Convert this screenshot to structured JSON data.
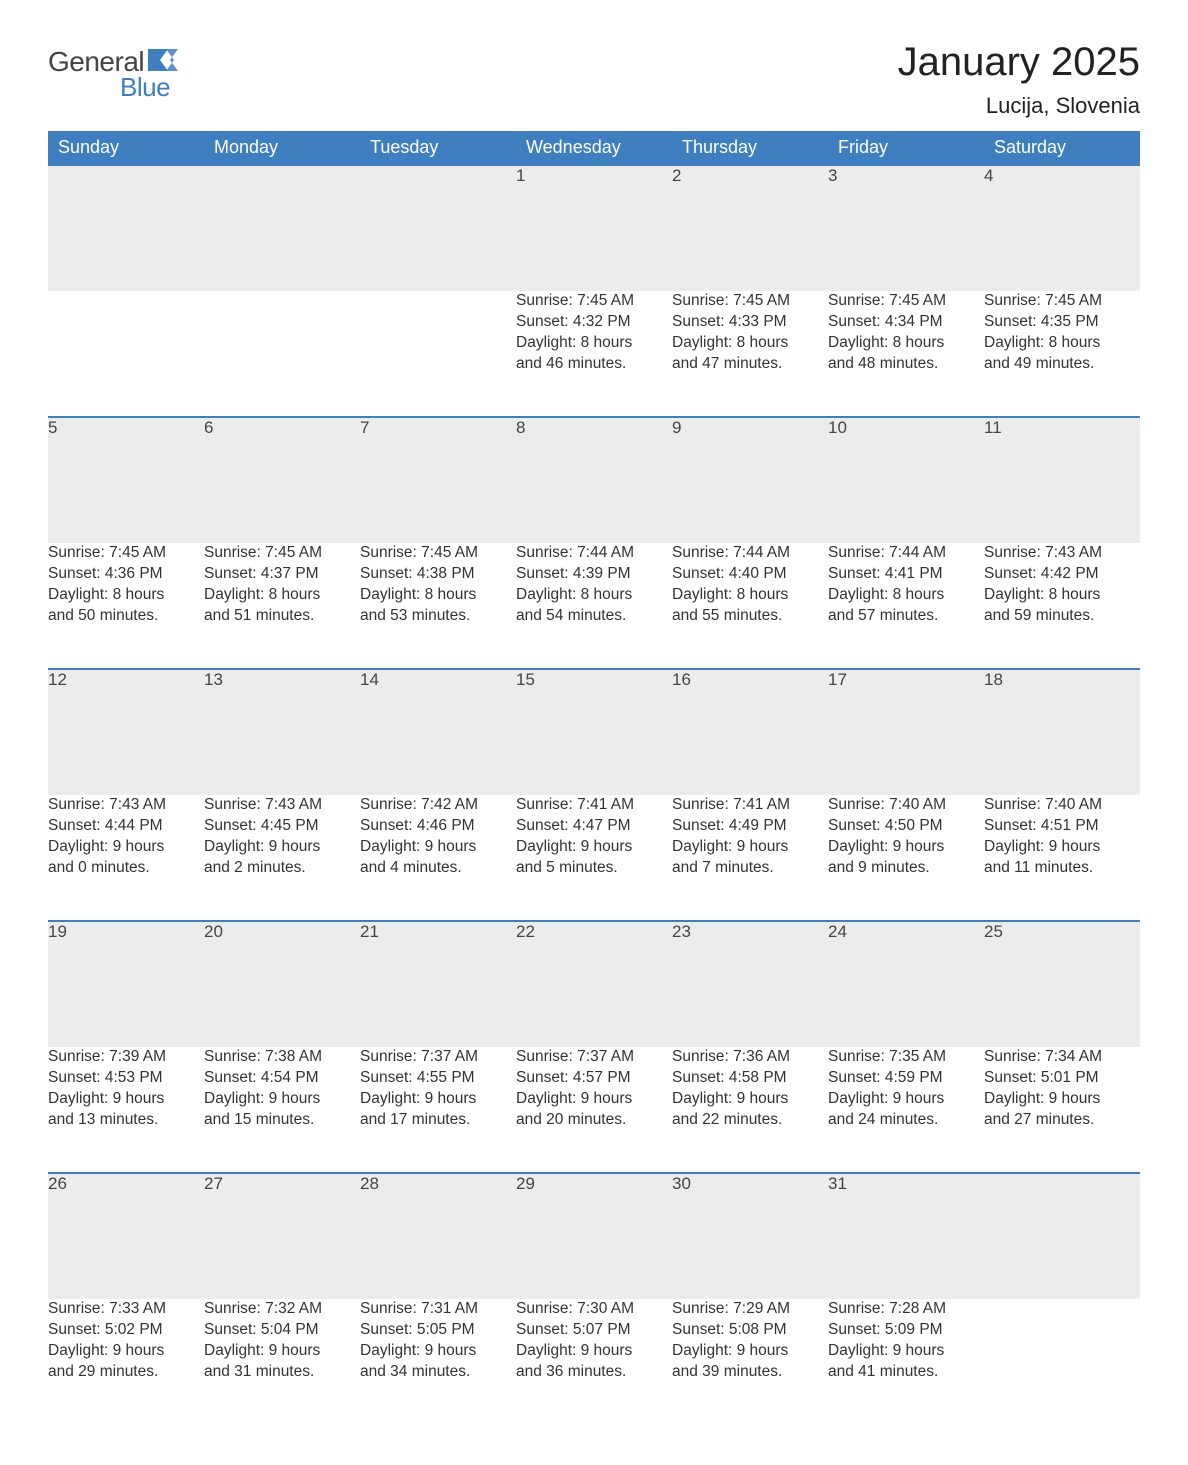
{
  "logo": {
    "text_general": "General",
    "text_blue": "Blue",
    "flag_color": "#3f7ebf"
  },
  "title": "January 2025",
  "location": "Lucija, Slovenia",
  "colors": {
    "header_bg": "#3f7ebf",
    "header_text": "#ffffff",
    "daynum_bg": "#ececec",
    "daynum_border": "#3f7ebf",
    "body_text": "#333333",
    "page_bg": "#ffffff"
  },
  "weekdays": [
    "Sunday",
    "Monday",
    "Tuesday",
    "Wednesday",
    "Thursday",
    "Friday",
    "Saturday"
  ],
  "weeks": [
    {
      "days": [
        null,
        null,
        null,
        {
          "num": "1",
          "sunrise": "Sunrise: 7:45 AM",
          "sunset": "Sunset: 4:32 PM",
          "daylight1": "Daylight: 8 hours",
          "daylight2": "and 46 minutes."
        },
        {
          "num": "2",
          "sunrise": "Sunrise: 7:45 AM",
          "sunset": "Sunset: 4:33 PM",
          "daylight1": "Daylight: 8 hours",
          "daylight2": "and 47 minutes."
        },
        {
          "num": "3",
          "sunrise": "Sunrise: 7:45 AM",
          "sunset": "Sunset: 4:34 PM",
          "daylight1": "Daylight: 8 hours",
          "daylight2": "and 48 minutes."
        },
        {
          "num": "4",
          "sunrise": "Sunrise: 7:45 AM",
          "sunset": "Sunset: 4:35 PM",
          "daylight1": "Daylight: 8 hours",
          "daylight2": "and 49 minutes."
        }
      ]
    },
    {
      "days": [
        {
          "num": "5",
          "sunrise": "Sunrise: 7:45 AM",
          "sunset": "Sunset: 4:36 PM",
          "daylight1": "Daylight: 8 hours",
          "daylight2": "and 50 minutes."
        },
        {
          "num": "6",
          "sunrise": "Sunrise: 7:45 AM",
          "sunset": "Sunset: 4:37 PM",
          "daylight1": "Daylight: 8 hours",
          "daylight2": "and 51 minutes."
        },
        {
          "num": "7",
          "sunrise": "Sunrise: 7:45 AM",
          "sunset": "Sunset: 4:38 PM",
          "daylight1": "Daylight: 8 hours",
          "daylight2": "and 53 minutes."
        },
        {
          "num": "8",
          "sunrise": "Sunrise: 7:44 AM",
          "sunset": "Sunset: 4:39 PM",
          "daylight1": "Daylight: 8 hours",
          "daylight2": "and 54 minutes."
        },
        {
          "num": "9",
          "sunrise": "Sunrise: 7:44 AM",
          "sunset": "Sunset: 4:40 PM",
          "daylight1": "Daylight: 8 hours",
          "daylight2": "and 55 minutes."
        },
        {
          "num": "10",
          "sunrise": "Sunrise: 7:44 AM",
          "sunset": "Sunset: 4:41 PM",
          "daylight1": "Daylight: 8 hours",
          "daylight2": "and 57 minutes."
        },
        {
          "num": "11",
          "sunrise": "Sunrise: 7:43 AM",
          "sunset": "Sunset: 4:42 PM",
          "daylight1": "Daylight: 8 hours",
          "daylight2": "and 59 minutes."
        }
      ]
    },
    {
      "days": [
        {
          "num": "12",
          "sunrise": "Sunrise: 7:43 AM",
          "sunset": "Sunset: 4:44 PM",
          "daylight1": "Daylight: 9 hours",
          "daylight2": "and 0 minutes."
        },
        {
          "num": "13",
          "sunrise": "Sunrise: 7:43 AM",
          "sunset": "Sunset: 4:45 PM",
          "daylight1": "Daylight: 9 hours",
          "daylight2": "and 2 minutes."
        },
        {
          "num": "14",
          "sunrise": "Sunrise: 7:42 AM",
          "sunset": "Sunset: 4:46 PM",
          "daylight1": "Daylight: 9 hours",
          "daylight2": "and 4 minutes."
        },
        {
          "num": "15",
          "sunrise": "Sunrise: 7:41 AM",
          "sunset": "Sunset: 4:47 PM",
          "daylight1": "Daylight: 9 hours",
          "daylight2": "and 5 minutes."
        },
        {
          "num": "16",
          "sunrise": "Sunrise: 7:41 AM",
          "sunset": "Sunset: 4:49 PM",
          "daylight1": "Daylight: 9 hours",
          "daylight2": "and 7 minutes."
        },
        {
          "num": "17",
          "sunrise": "Sunrise: 7:40 AM",
          "sunset": "Sunset: 4:50 PM",
          "daylight1": "Daylight: 9 hours",
          "daylight2": "and 9 minutes."
        },
        {
          "num": "18",
          "sunrise": "Sunrise: 7:40 AM",
          "sunset": "Sunset: 4:51 PM",
          "daylight1": "Daylight: 9 hours",
          "daylight2": "and 11 minutes."
        }
      ]
    },
    {
      "days": [
        {
          "num": "19",
          "sunrise": "Sunrise: 7:39 AM",
          "sunset": "Sunset: 4:53 PM",
          "daylight1": "Daylight: 9 hours",
          "daylight2": "and 13 minutes."
        },
        {
          "num": "20",
          "sunrise": "Sunrise: 7:38 AM",
          "sunset": "Sunset: 4:54 PM",
          "daylight1": "Daylight: 9 hours",
          "daylight2": "and 15 minutes."
        },
        {
          "num": "21",
          "sunrise": "Sunrise: 7:37 AM",
          "sunset": "Sunset: 4:55 PM",
          "daylight1": "Daylight: 9 hours",
          "daylight2": "and 17 minutes."
        },
        {
          "num": "22",
          "sunrise": "Sunrise: 7:37 AM",
          "sunset": "Sunset: 4:57 PM",
          "daylight1": "Daylight: 9 hours",
          "daylight2": "and 20 minutes."
        },
        {
          "num": "23",
          "sunrise": "Sunrise: 7:36 AM",
          "sunset": "Sunset: 4:58 PM",
          "daylight1": "Daylight: 9 hours",
          "daylight2": "and 22 minutes."
        },
        {
          "num": "24",
          "sunrise": "Sunrise: 7:35 AM",
          "sunset": "Sunset: 4:59 PM",
          "daylight1": "Daylight: 9 hours",
          "daylight2": "and 24 minutes."
        },
        {
          "num": "25",
          "sunrise": "Sunrise: 7:34 AM",
          "sunset": "Sunset: 5:01 PM",
          "daylight1": "Daylight: 9 hours",
          "daylight2": "and 27 minutes."
        }
      ]
    },
    {
      "days": [
        {
          "num": "26",
          "sunrise": "Sunrise: 7:33 AM",
          "sunset": "Sunset: 5:02 PM",
          "daylight1": "Daylight: 9 hours",
          "daylight2": "and 29 minutes."
        },
        {
          "num": "27",
          "sunrise": "Sunrise: 7:32 AM",
          "sunset": "Sunset: 5:04 PM",
          "daylight1": "Daylight: 9 hours",
          "daylight2": "and 31 minutes."
        },
        {
          "num": "28",
          "sunrise": "Sunrise: 7:31 AM",
          "sunset": "Sunset: 5:05 PM",
          "daylight1": "Daylight: 9 hours",
          "daylight2": "and 34 minutes."
        },
        {
          "num": "29",
          "sunrise": "Sunrise: 7:30 AM",
          "sunset": "Sunset: 5:07 PM",
          "daylight1": "Daylight: 9 hours",
          "daylight2": "and 36 minutes."
        },
        {
          "num": "30",
          "sunrise": "Sunrise: 7:29 AM",
          "sunset": "Sunset: 5:08 PM",
          "daylight1": "Daylight: 9 hours",
          "daylight2": "and 39 minutes."
        },
        {
          "num": "31",
          "sunrise": "Sunrise: 7:28 AM",
          "sunset": "Sunset: 5:09 PM",
          "daylight1": "Daylight: 9 hours",
          "daylight2": "and 41 minutes."
        },
        null
      ]
    }
  ]
}
